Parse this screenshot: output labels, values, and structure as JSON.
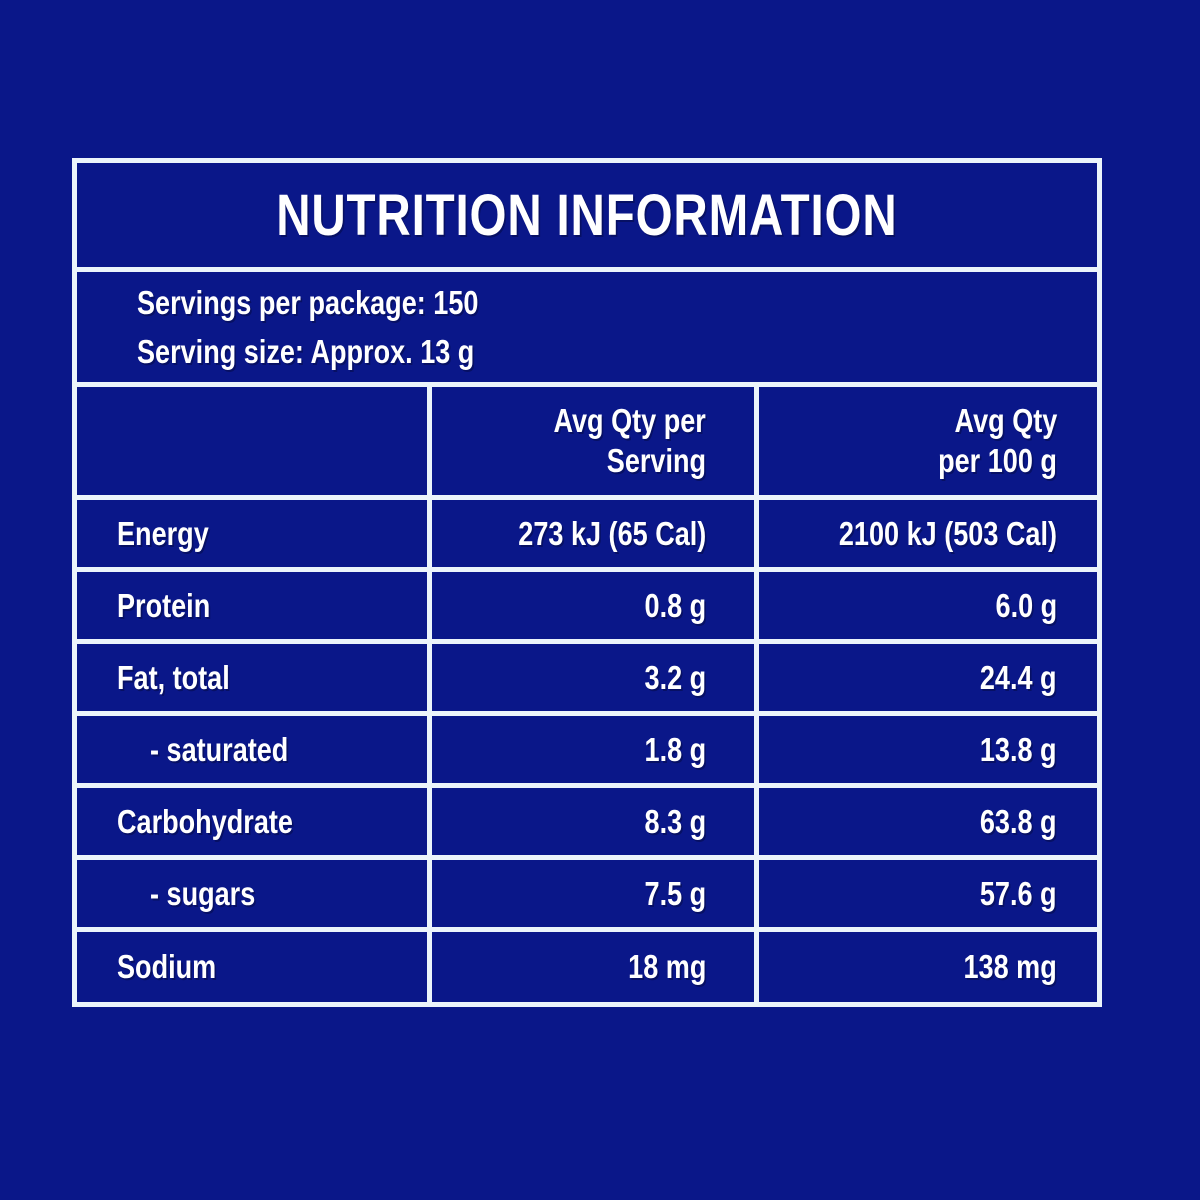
{
  "panel": {
    "title": "NUTRITION INFORMATION",
    "servings": {
      "per_package": "Servings per package: 150",
      "serving_size": "Serving size: Approx. 13 g"
    },
    "columns": {
      "per_serving_line1": "Avg Qty per",
      "per_serving_line2": "Serving",
      "per_100g_line1": "Avg Qty",
      "per_100g_line2": "per 100 g"
    },
    "rows": [
      {
        "label": "Energy",
        "per_serving": "273 kJ (65 Cal)",
        "per_100g": "2100 kJ (503 Cal)",
        "indent": false
      },
      {
        "label": "Protein",
        "per_serving": "0.8 g",
        "per_100g": "6.0 g",
        "indent": false
      },
      {
        "label": "Fat, total",
        "per_serving": "3.2 g",
        "per_100g": "24.4 g",
        "indent": false
      },
      {
        "label": "- saturated",
        "per_serving": "1.8 g",
        "per_100g": "13.8 g",
        "indent": true
      },
      {
        "label": "Carbohydrate",
        "per_serving": "8.3 g",
        "per_100g": "63.8 g",
        "indent": false
      },
      {
        "label": "- sugars",
        "per_serving": "7.5 g",
        "per_100g": "57.6 g",
        "indent": true
      },
      {
        "label": "Sodium",
        "per_serving": "18 mg",
        "per_100g": "138 mg",
        "indent": false
      }
    ],
    "colors": {
      "background": "#0A1789",
      "gridline": "#ECF4FB",
      "text": "#FFFFFF"
    }
  }
}
